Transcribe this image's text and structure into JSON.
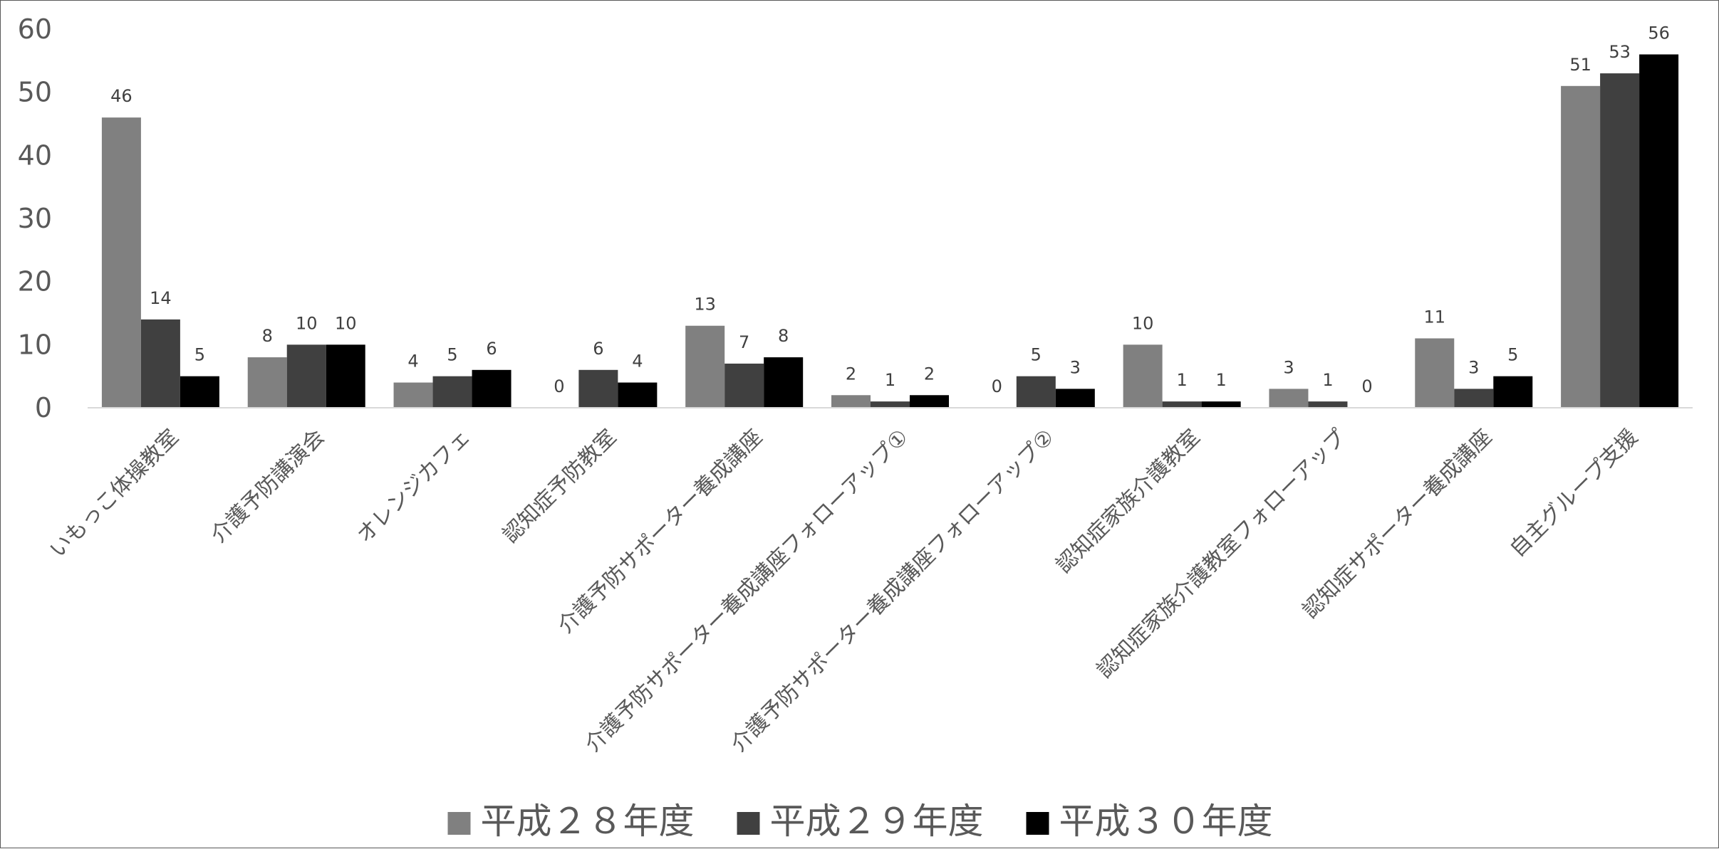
{
  "chart_data": {
    "type": "bar",
    "title": "",
    "xlabel": "",
    "ylabel": "",
    "ylim": [
      0,
      60
    ],
    "yticks": [
      0,
      10,
      20,
      30,
      40,
      50,
      60
    ],
    "grid": false,
    "legend_position": "bottom",
    "categories": [
      "いもっこ体操教室",
      "介護予防講演会",
      "オレンジカフェ",
      "認知症予防教室",
      "介護予防サポーター養成講座",
      "介護予防サポーター養成講座フォローアップ①",
      "介護予防サポーター養成講座フォローアップ②",
      "認知症家族介護教室",
      "認知症家族介護教室フォローアップ",
      "認知症サポーター養成講座",
      "自主グループ支援"
    ],
    "series": [
      {
        "name": "平成２８年度",
        "color": "#808080",
        "values": [
          46,
          8,
          4,
          0,
          13,
          2,
          0,
          10,
          3,
          11,
          51
        ]
      },
      {
        "name": "平成２９年度",
        "color": "#404040",
        "values": [
          14,
          10,
          5,
          6,
          7,
          1,
          5,
          1,
          1,
          3,
          53
        ]
      },
      {
        "name": "平成３０年度",
        "color": "#000000",
        "values": [
          5,
          10,
          6,
          4,
          8,
          2,
          3,
          1,
          0,
          5,
          56
        ]
      }
    ],
    "axis_color": "#d9d9d9",
    "text_color": "#595959",
    "data_label_color": "#404040"
  }
}
